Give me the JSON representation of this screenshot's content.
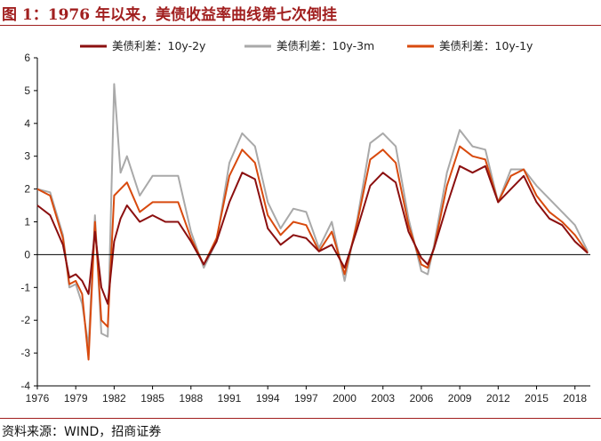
{
  "title": "图 1：1976 年以来，美债收益率曲线第七次倒挂",
  "source": "资料来源：WIND，招商证券",
  "colors": {
    "accent": "#a11f1f"
  },
  "chart_data": {
    "type": "line",
    "ylim": [
      -4,
      6
    ],
    "yticks": [
      "6",
      "5",
      "4",
      "3",
      "2",
      "1",
      "0",
      "-1",
      "-2",
      "-3",
      "-4"
    ],
    "xlim": [
      1976.0,
      2019.2
    ],
    "xticks": [
      "1976",
      "1979",
      "1982",
      "1985",
      "1988",
      "1991",
      "1994",
      "1997",
      "2000",
      "2003",
      "2006",
      "2009",
      "2012",
      "2015",
      "2018"
    ],
    "legend_position": "top",
    "x": [
      1976.0,
      1977.0,
      1978.0,
      1978.5,
      1979.0,
      1979.5,
      1980.0,
      1980.5,
      1981.0,
      1981.5,
      1982.0,
      1982.5,
      1983.0,
      1984.0,
      1985.0,
      1986.0,
      1987.0,
      1988.0,
      1989.0,
      1990.0,
      1991.0,
      1992.0,
      1993.0,
      1994.0,
      1995.0,
      1996.0,
      1997.0,
      1998.0,
      1999.0,
      2000.0,
      2001.0,
      2002.0,
      2003.0,
      2004.0,
      2005.0,
      2006.0,
      2006.5,
      2007.0,
      2008.0,
      2009.0,
      2010.0,
      2011.0,
      2012.0,
      2013.0,
      2014.0,
      2015.0,
      2016.0,
      2017.0,
      2018.0,
      2019.0
    ],
    "series": [
      {
        "name": "美债利差：10y-2y",
        "color": "#8b0f0f",
        "values": [
          1.5,
          1.2,
          0.3,
          -0.7,
          -0.6,
          -0.8,
          -1.2,
          0.7,
          -1.0,
          -1.5,
          0.4,
          1.1,
          1.5,
          1.0,
          1.2,
          1.0,
          1.0,
          0.4,
          -0.3,
          0.4,
          1.6,
          2.5,
          2.3,
          0.8,
          0.3,
          0.6,
          0.5,
          0.1,
          0.3,
          -0.4,
          0.8,
          2.1,
          2.5,
          2.2,
          0.7,
          -0.1,
          -0.3,
          0.2,
          1.5,
          2.7,
          2.5,
          2.7,
          1.6,
          2.0,
          2.4,
          1.6,
          1.1,
          0.9,
          0.4,
          0.05
        ]
      },
      {
        "name": "美债利差：10y-3m",
        "color": "#a9a9a9",
        "values": [
          2.0,
          1.9,
          0.6,
          -1.0,
          -0.9,
          -1.5,
          -2.8,
          1.2,
          -2.4,
          -2.5,
          5.2,
          2.5,
          3.0,
          1.8,
          2.4,
          2.4,
          2.4,
          0.7,
          -0.4,
          0.4,
          2.8,
          3.7,
          3.3,
          1.6,
          0.8,
          1.4,
          1.3,
          0.2,
          1.0,
          -0.8,
          1.1,
          3.4,
          3.7,
          3.3,
          1.1,
          -0.5,
          -0.6,
          0.3,
          2.5,
          3.8,
          3.3,
          3.2,
          1.6,
          2.6,
          2.6,
          2.1,
          1.7,
          1.3,
          0.9,
          0.1
        ]
      },
      {
        "name": "美债利差：10y-1y",
        "color": "#d84a0e",
        "values": [
          2.0,
          1.8,
          0.5,
          -0.9,
          -0.8,
          -1.2,
          -3.2,
          1.0,
          -2.0,
          -2.2,
          1.8,
          2.0,
          2.2,
          1.3,
          1.6,
          1.6,
          1.6,
          0.5,
          -0.3,
          0.5,
          2.4,
          3.2,
          2.8,
          1.2,
          0.6,
          1.0,
          0.9,
          0.1,
          0.7,
          -0.6,
          1.0,
          2.9,
          3.2,
          2.8,
          0.9,
          -0.3,
          -0.4,
          0.2,
          2.1,
          3.3,
          3.0,
          2.9,
          1.6,
          2.4,
          2.6,
          1.8,
          1.3,
          1.0,
          0.6,
          0.05
        ]
      }
    ]
  }
}
